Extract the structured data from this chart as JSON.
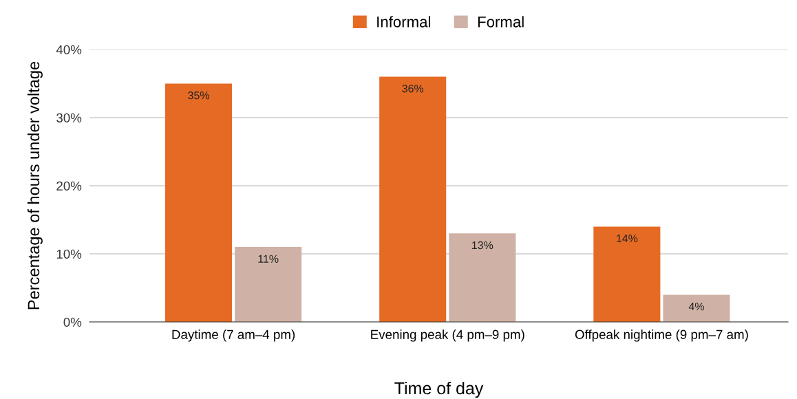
{
  "chart_data": {
    "type": "bar",
    "xlabel": "Time of day",
    "ylabel": "Percentage of hours under voltage",
    "categories": [
      "Daytime (7 am–4 pm)",
      "Evening peak (4 pm–9 pm)",
      "Offpeak nightime (9 pm–7 am)"
    ],
    "series": [
      {
        "name": "Informal",
        "color": "#e56b25",
        "values": [
          35,
          36,
          14
        ],
        "value_labels": [
          "35%",
          "36%",
          "14%"
        ]
      },
      {
        "name": "Formal",
        "color": "#cfb2a5",
        "values": [
          11,
          13,
          4
        ],
        "value_labels": [
          "11%",
          "13%",
          "4%"
        ]
      }
    ],
    "ylim": [
      0,
      40
    ],
    "yticks": [
      {
        "value": 0,
        "label": "0%"
      },
      {
        "value": 10,
        "label": "10%"
      },
      {
        "value": 20,
        "label": "20%"
      },
      {
        "value": 30,
        "label": "30%"
      },
      {
        "value": 40,
        "label": "40%"
      }
    ],
    "grid": "y",
    "legend": "top"
  }
}
